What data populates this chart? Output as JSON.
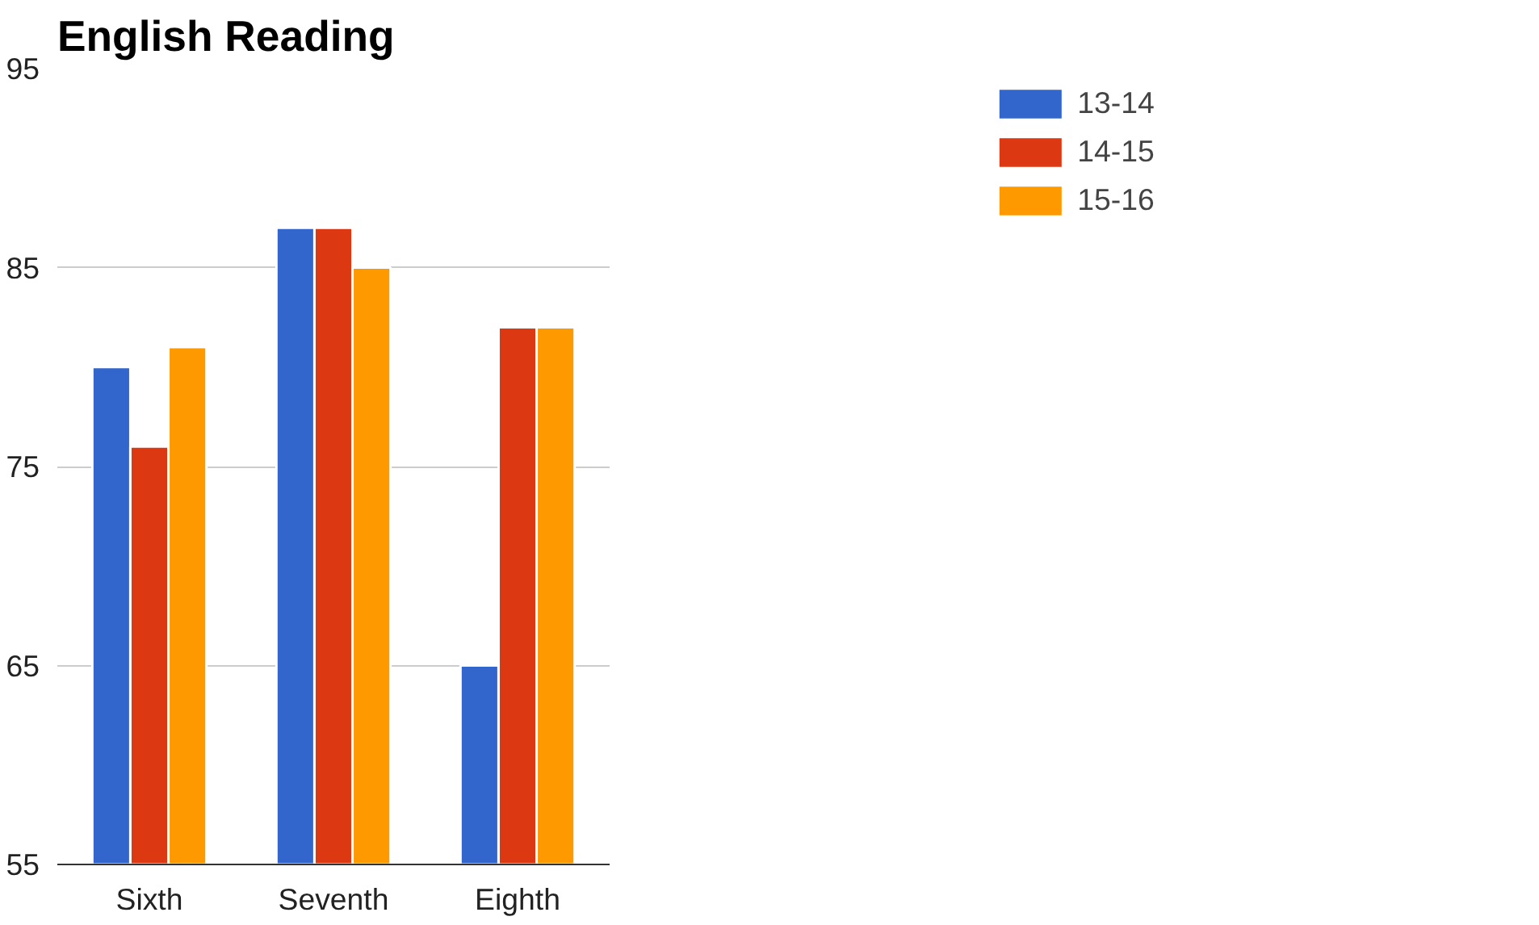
{
  "chart_data": {
    "type": "bar",
    "title": "English Reading",
    "categories": [
      "Sixth",
      "Seventh",
      "Eighth"
    ],
    "series": [
      {
        "name": "13-14",
        "color": "#3366cc",
        "values": [
          80,
          87,
          65
        ]
      },
      {
        "name": "14-15",
        "color": "#dc3912",
        "values": [
          76,
          87,
          82
        ]
      },
      {
        "name": "15-16",
        "color": "#ff9900",
        "values": [
          81,
          85,
          82
        ]
      }
    ],
    "ylim": [
      55,
      95
    ],
    "yticks": [
      55,
      65,
      75,
      85,
      95
    ],
    "grid": "y",
    "legend": "top right"
  }
}
